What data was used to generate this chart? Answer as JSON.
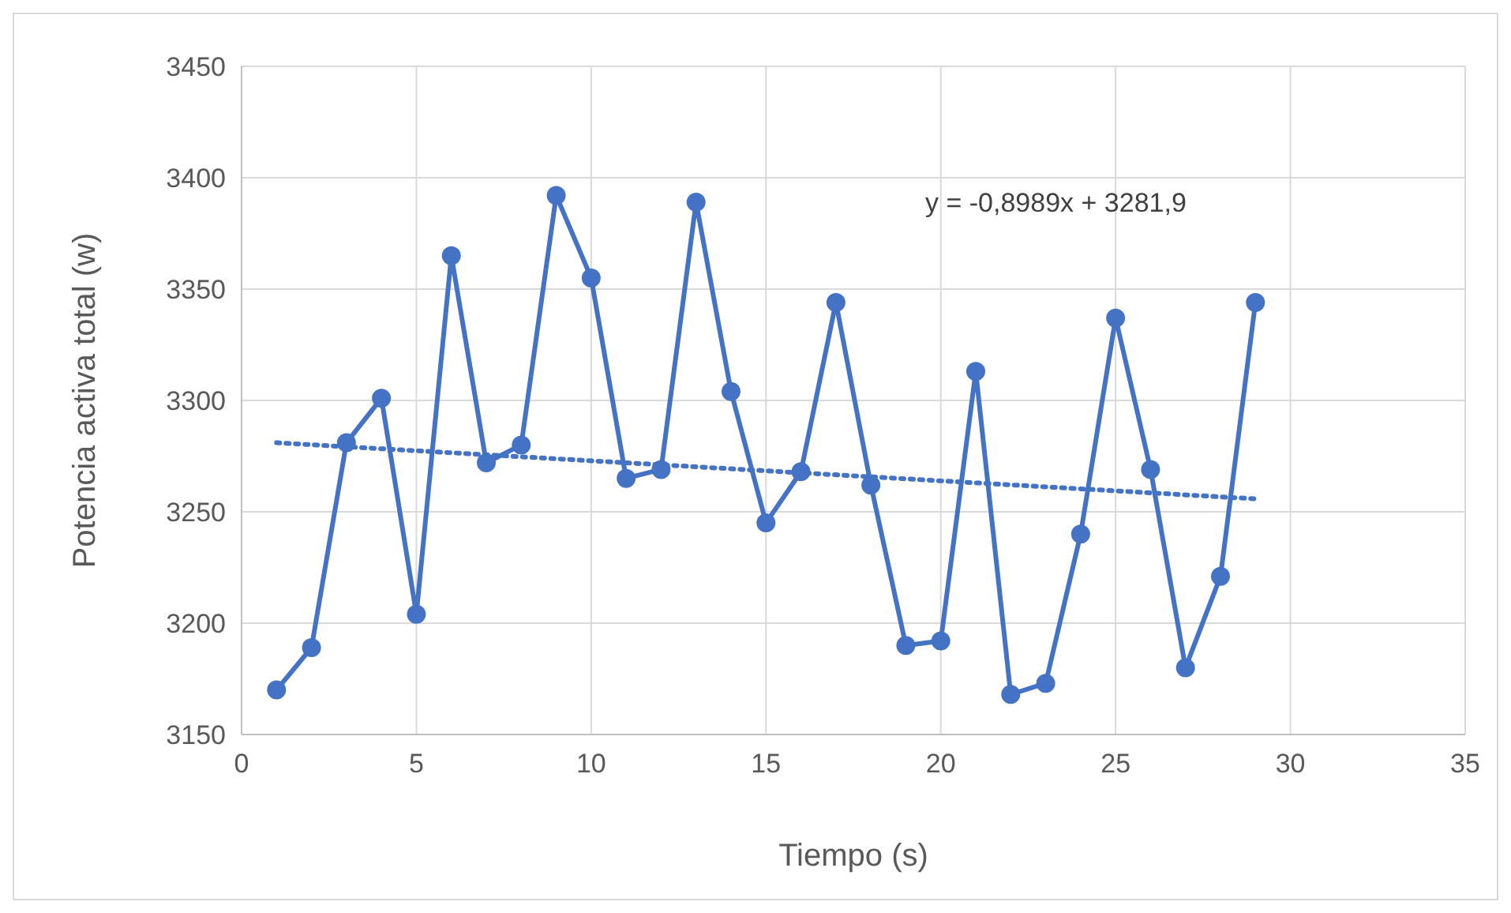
{
  "chart_data": {
    "type": "line",
    "xlabel": "Tiempo (s)",
    "ylabel": "Potencia activa total (w)",
    "x": [
      1,
      2,
      3,
      4,
      5,
      6,
      7,
      8,
      9,
      10,
      11,
      12,
      13,
      14,
      15,
      16,
      17,
      18,
      19,
      20,
      21,
      22,
      23,
      24,
      25,
      26,
      27,
      28,
      29
    ],
    "series": [
      {
        "color": "#4472c4",
        "marker": "circle",
        "line_style": "solid",
        "values": [
          3170,
          3189,
          3281,
          3301,
          3204,
          3365,
          3272,
          3280,
          3392,
          3355,
          3265,
          3269,
          3389,
          3304,
          3245,
          3268,
          3344,
          3262,
          3190,
          3192,
          3313,
          3168,
          3173,
          3240,
          3337,
          3269,
          3180,
          3221,
          3344
        ]
      },
      {
        "type": "line",
        "color": "#4472c4",
        "marker": "none",
        "line_style": "dotted",
        "x": [
          1,
          29
        ],
        "values": [
          3281.0,
          3255.8
        ]
      }
    ],
    "xlim": [
      0,
      35
    ],
    "xticks": [
      0,
      5,
      10,
      15,
      20,
      25,
      30,
      35
    ],
    "ylim": [
      3150,
      3450
    ],
    "yticks": [
      3150,
      3200,
      3250,
      3300,
      3350,
      3400,
      3450
    ],
    "grid": true,
    "annotations": [
      "y = -0,8989x + 3281,9"
    ]
  }
}
